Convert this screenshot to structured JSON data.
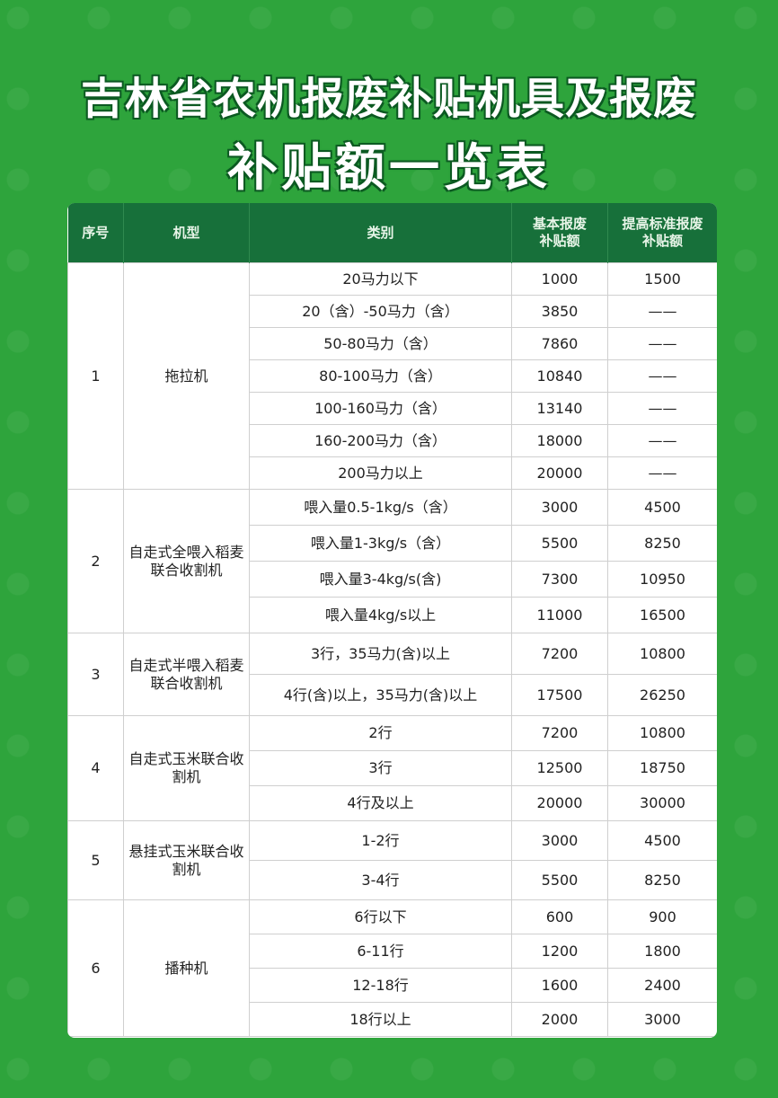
{
  "title_line1": "吉林省农机报废补贴机具及报废",
  "title_line2": "补贴额一览表",
  "colors": {
    "background": "#2ea43c",
    "header": "#17703a"
  },
  "headers": {
    "no": "序号",
    "model": "机型",
    "category": "类别",
    "basic": "基本报废补贴额",
    "raised": "提高标准报废补贴额"
  },
  "groups": [
    {
      "no": "1",
      "model": "拖拉机",
      "rows": [
        {
          "category": "20马力以下",
          "basic": "1000",
          "raised": "1500"
        },
        {
          "category": "20（含）-50马力（含）",
          "basic": "3850",
          "raised": "——"
        },
        {
          "category": "50-80马力（含）",
          "basic": "7860",
          "raised": "——"
        },
        {
          "category": "80-100马力（含）",
          "basic": "10840",
          "raised": "——"
        },
        {
          "category": "100-160马力（含）",
          "basic": "13140",
          "raised": "——"
        },
        {
          "category": "160-200马力（含）",
          "basic": "18000",
          "raised": "——"
        },
        {
          "category": "200马力以上",
          "basic": "20000",
          "raised": "——"
        }
      ]
    },
    {
      "no": "2",
      "model": "自走式全喂入稻麦联合收割机",
      "rows": [
        {
          "category": "喂入量0.5-1kg/s（含）",
          "basic": "3000",
          "raised": "4500"
        },
        {
          "category": "喂入量1-3kg/s（含）",
          "basic": "5500",
          "raised": "8250"
        },
        {
          "category": "喂入量3-4kg/s(含)",
          "basic": "7300",
          "raised": "10950"
        },
        {
          "category": "喂入量4kg/s以上",
          "basic": "11000",
          "raised": "16500"
        }
      ]
    },
    {
      "no": "3",
      "model": "自走式半喂入稻麦联合收割机",
      "rows": [
        {
          "category": "3行，35马力(含)以上",
          "basic": "7200",
          "raised": "10800"
        },
        {
          "category": "4行(含)以上，35马力(含)以上",
          "basic": "17500",
          "raised": "26250"
        }
      ]
    },
    {
      "no": "4",
      "model": "自走式玉米联合收割机",
      "rows": [
        {
          "category": "2行",
          "basic": "7200",
          "raised": "10800"
        },
        {
          "category": "3行",
          "basic": "12500",
          "raised": "18750"
        },
        {
          "category": "4行及以上",
          "basic": "20000",
          "raised": "30000"
        }
      ]
    },
    {
      "no": "5",
      "model": "悬挂式玉米联合收割机",
      "rows": [
        {
          "category": "1-2行",
          "basic": "3000",
          "raised": "4500"
        },
        {
          "category": "3-4行",
          "basic": "5500",
          "raised": "8250"
        }
      ]
    },
    {
      "no": "6",
      "model": "播种机",
      "rows": [
        {
          "category": "6行以下",
          "basic": "600",
          "raised": "900"
        },
        {
          "category": "6-11行",
          "basic": "1200",
          "raised": "1800"
        },
        {
          "category": "12-18行",
          "basic": "1600",
          "raised": "2400"
        },
        {
          "category": "18行以上",
          "basic": "2000",
          "raised": "3000"
        }
      ]
    }
  ]
}
